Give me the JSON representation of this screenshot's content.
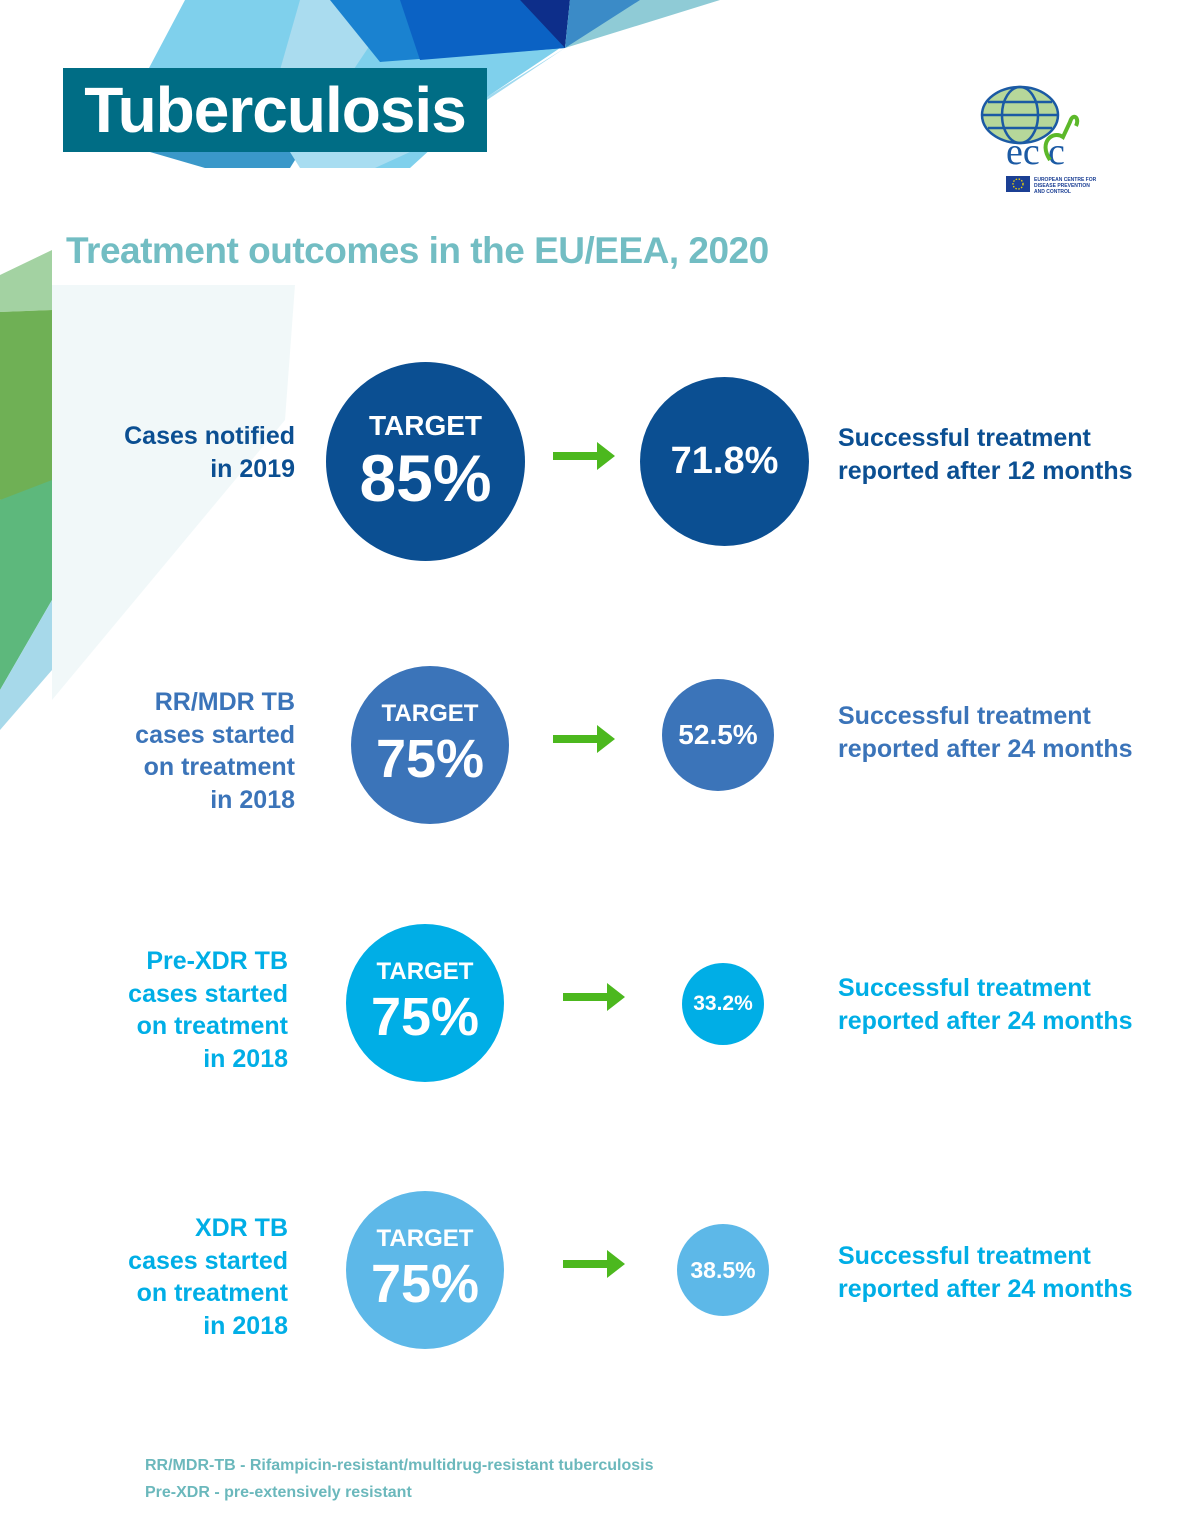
{
  "header": {
    "title": "Tuberculosis"
  },
  "logo": {
    "text": "ecdc",
    "subtext": "EUROPEAN CENTRE FOR DISEASE PREVENTION AND CONTROL"
  },
  "subtitle": "Treatment outcomes in the EU/EEA, 2020",
  "colors": {
    "row1": "#0b4f92",
    "row2": "#3b74b9",
    "row3": "#00aee6",
    "row4": "#5db8e8",
    "arrow": "#4cb81e",
    "title_bg": "#006d85",
    "subtitle": "#72bdc3"
  },
  "rows": [
    {
      "label": "Cases notified\nin 2019",
      "target_label": "TARGET",
      "target": "85%",
      "result": "71.8%",
      "outcome": "Successful treatment\nreported after 12 months"
    },
    {
      "label": "RR/MDR TB\ncases started\non treatment\nin 2018",
      "target_label": "TARGET",
      "target": "75%",
      "result": "52.5%",
      "outcome": "Successful treatment\nreported after 24 months"
    },
    {
      "label": "Pre-XDR TB\ncases started\non treatment\nin 2018",
      "target_label": "TARGET",
      "target": "75%",
      "result": "33.2%",
      "outcome": "Successful treatment\nreported after 24 months"
    },
    {
      "label": "XDR TB\ncases started\non treatment\nin 2018",
      "target_label": "TARGET",
      "target": "75%",
      "result": "38.5%",
      "outcome": "Successful treatment\nreported after 24 months"
    }
  ],
  "footnotes": [
    "RR/MDR-TB - Rifampicin-resistant/multidrug-resistant tuberculosis",
    "Pre-XDR - pre-extensively resistant"
  ]
}
